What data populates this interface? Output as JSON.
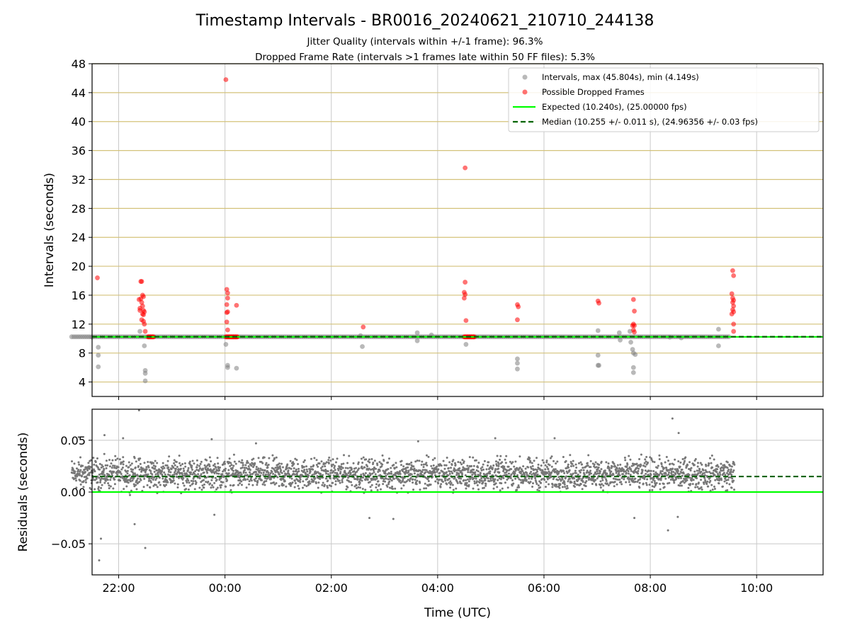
{
  "chart_data": [
    {
      "type": "scatter",
      "title": "Timestamp Intervals - BR0016_20240621_210710_244138",
      "subtitle_lines": [
        "Jitter Quality (intervals within +/-1 frame): 96.3%",
        "Dropped Frame Rate (intervals >1 frames late within 50 FF files): 5.3%"
      ],
      "xlabel": "",
      "ylabel": "Intervals (seconds)",
      "ylim": [
        2,
        48
      ],
      "yticks": [
        4,
        8,
        12,
        16,
        20,
        24,
        28,
        32,
        36,
        40,
        44,
        48
      ],
      "xlim_hours": [
        -2.5,
        11.25
      ],
      "grid": "horizontal gold lines, vertical grey lines",
      "legend_position": "top-right",
      "legend": [
        "Intervals, max (45.804s), min (4.149s)",
        "Possible Dropped Frames",
        "Expected (10.240s), (25.00000 fps)",
        "Median (10.255 +/- 0.011 s), (24.96356 +/- 0.03 fps)"
      ],
      "expected_interval": 10.24,
      "median_interval": 10.255,
      "series": [
        {
          "name": "Intervals, max (45.804s), min (4.149s)",
          "color": "#808080",
          "baseline_value": 10.25,
          "baseline_x_range": [
            "21:07",
            "09:30"
          ],
          "points": [
            [
              "21:30",
              10.2
            ],
            [
              "21:37",
              8.8
            ],
            [
              "21:37",
              7.7
            ],
            [
              "21:37",
              6.1
            ],
            [
              "22:24",
              11.0
            ],
            [
              "22:29",
              9.0
            ],
            [
              "22:30",
              5.6
            ],
            [
              "22:30",
              5.2
            ],
            [
              "22:30",
              4.15
            ],
            [
              "00:01",
              9.2
            ],
            [
              "00:03",
              6.3
            ],
            [
              "00:03",
              6.0
            ],
            [
              "00:13",
              5.9
            ],
            [
              "02:33",
              10.4
            ],
            [
              "02:35",
              8.9
            ],
            [
              "03:37",
              10.8
            ],
            [
              "03:37",
              9.7
            ],
            [
              "03:53",
              10.5
            ],
            [
              "04:32",
              9.2
            ],
            [
              "05:30",
              7.2
            ],
            [
              "05:30",
              6.6
            ],
            [
              "05:30",
              5.8
            ],
            [
              "07:01",
              11.1
            ],
            [
              "07:01",
              7.7
            ],
            [
              "07:01",
              6.3
            ],
            [
              "07:02",
              6.3
            ],
            [
              "07:25",
              10.8
            ],
            [
              "07:26",
              9.8
            ],
            [
              "07:37",
              11.0
            ],
            [
              "07:38",
              9.5
            ],
            [
              "07:40",
              8.5
            ],
            [
              "07:41",
              8.0
            ],
            [
              "07:41",
              6.0
            ],
            [
              "07:41",
              5.3
            ],
            [
              "07:43",
              7.8
            ],
            [
              "08:22",
              10.2
            ],
            [
              "08:35",
              10.1
            ],
            [
              "09:17",
              11.3
            ],
            [
              "09:17",
              9.0
            ]
          ]
        },
        {
          "name": "Possible Dropped Frames",
          "color": "#ff0000",
          "points": [
            [
              "21:36",
              18.4
            ],
            [
              "22:23",
              15.4
            ],
            [
              "22:24",
              14.2
            ],
            [
              "22:24",
              13.9
            ],
            [
              "22:25",
              17.9
            ],
            [
              "22:25",
              15.5
            ],
            [
              "22:26",
              15.0
            ],
            [
              "22:26",
              12.6
            ],
            [
              "22:27",
              16.0
            ],
            [
              "22:27",
              14.5
            ],
            [
              "22:27",
              13.4
            ],
            [
              "22:28",
              13.9
            ],
            [
              "22:28",
              13.3
            ],
            [
              "22:28",
              12.4
            ],
            [
              "22:29",
              13.7
            ],
            [
              "22:29",
              12.0
            ],
            [
              "22:30",
              11.0
            ],
            [
              "22:26",
              17.9
            ],
            [
              "22:28",
              15.8
            ],
            [
              "00:02",
              16.8
            ],
            [
              "00:03",
              16.3
            ],
            [
              "00:03",
              15.6
            ],
            [
              "00:02",
              14.7
            ],
            [
              "00:03",
              13.7
            ],
            [
              "00:02",
              13.6
            ],
            [
              "00:02",
              12.3
            ],
            [
              "00:03",
              11.2
            ],
            [
              "00:13",
              14.6
            ],
            [
              "00:01",
              45.8
            ],
            [
              "02:36",
              11.6
            ],
            [
              "04:31",
              17.8
            ],
            [
              "04:30",
              16.4
            ],
            [
              "04:31",
              16.1
            ],
            [
              "04:30",
              15.6
            ],
            [
              "04:32",
              12.5
            ],
            [
              "04:31",
              33.6
            ],
            [
              "05:30",
              14.7
            ],
            [
              "05:31",
              14.4
            ],
            [
              "05:30",
              12.6
            ],
            [
              "07:01",
              15.2
            ],
            [
              "07:02",
              14.9
            ],
            [
              "07:41",
              15.4
            ],
            [
              "07:42",
              13.8
            ],
            [
              "07:41",
              12.0
            ],
            [
              "07:42",
              11.8
            ],
            [
              "07:41",
              11.2
            ],
            [
              "07:42",
              10.9
            ],
            [
              "07:40",
              11.8
            ],
            [
              "09:33",
              19.4
            ],
            [
              "09:34",
              18.7
            ],
            [
              "09:32",
              16.2
            ],
            [
              "09:33",
              15.6
            ],
            [
              "09:34",
              15.3
            ],
            [
              "09:33",
              15.0
            ],
            [
              "09:34",
              14.5
            ],
            [
              "09:33",
              14.0
            ],
            [
              "09:34",
              13.7
            ],
            [
              "09:32",
              13.4
            ],
            [
              "09:34",
              12.0
            ],
            [
              "09:34",
              11.0
            ]
          ],
          "clusters_at_baseline": [
            {
              "x_range": [
                "22:33",
                "22:40"
              ],
              "value": 10.24
            },
            {
              "x_range": [
                "00:01",
                "00:14"
              ],
              "value": 10.24
            },
            {
              "x_range": [
                "04:30",
                "04:42"
              ],
              "value": 10.24
            }
          ]
        }
      ]
    },
    {
      "type": "scatter",
      "title": "",
      "xlabel": "Time (UTC)",
      "ylabel": "Residuals (seconds)",
      "ylim": [
        -0.08,
        0.08
      ],
      "yticks": [
        -0.05,
        0.0,
        0.05
      ],
      "ytick_labels": [
        "−0.05",
        "0.00",
        "0.05"
      ],
      "xtick_labels": [
        "22:00",
        "00:00",
        "02:00",
        "04:00",
        "06:00",
        "08:00",
        "10:00"
      ],
      "xtick_hours": [
        -2,
        0,
        2,
        4,
        6,
        8,
        10
      ],
      "grid": "on",
      "expected_residual": 0.0,
      "median_residual": 0.015,
      "series": [
        {
          "name": "Residuals",
          "color": "#777777",
          "x_range": [
            "21:07",
            "09:35"
          ],
          "typical_range": [
            0.0,
            0.035
          ],
          "outliers": [
            [
              "21:38",
              -0.066
            ],
            [
              "21:40",
              -0.045
            ],
            [
              "22:18",
              -0.031
            ],
            [
              "22:30",
              -0.054
            ],
            [
              "22:23",
              0.079
            ],
            [
              "21:15",
              0.053
            ],
            [
              "21:44",
              0.055
            ],
            [
              "22:05",
              0.052
            ],
            [
              "23:45",
              0.051
            ],
            [
              "05:05",
              0.052
            ],
            [
              "06:12",
              0.052
            ],
            [
              "08:25",
              0.071
            ],
            [
              "08:32",
              0.057
            ],
            [
              "08:20",
              -0.037
            ],
            [
              "08:31",
              -0.024
            ],
            [
              "07:42",
              -0.025
            ],
            [
              "00:35",
              0.047
            ],
            [
              "03:38",
              0.049
            ],
            [
              "02:43",
              -0.025
            ],
            [
              "03:10",
              -0.026
            ],
            [
              "23:48",
              -0.022
            ],
            [
              "09:31",
              0.021
            ]
          ]
        }
      ]
    }
  ]
}
